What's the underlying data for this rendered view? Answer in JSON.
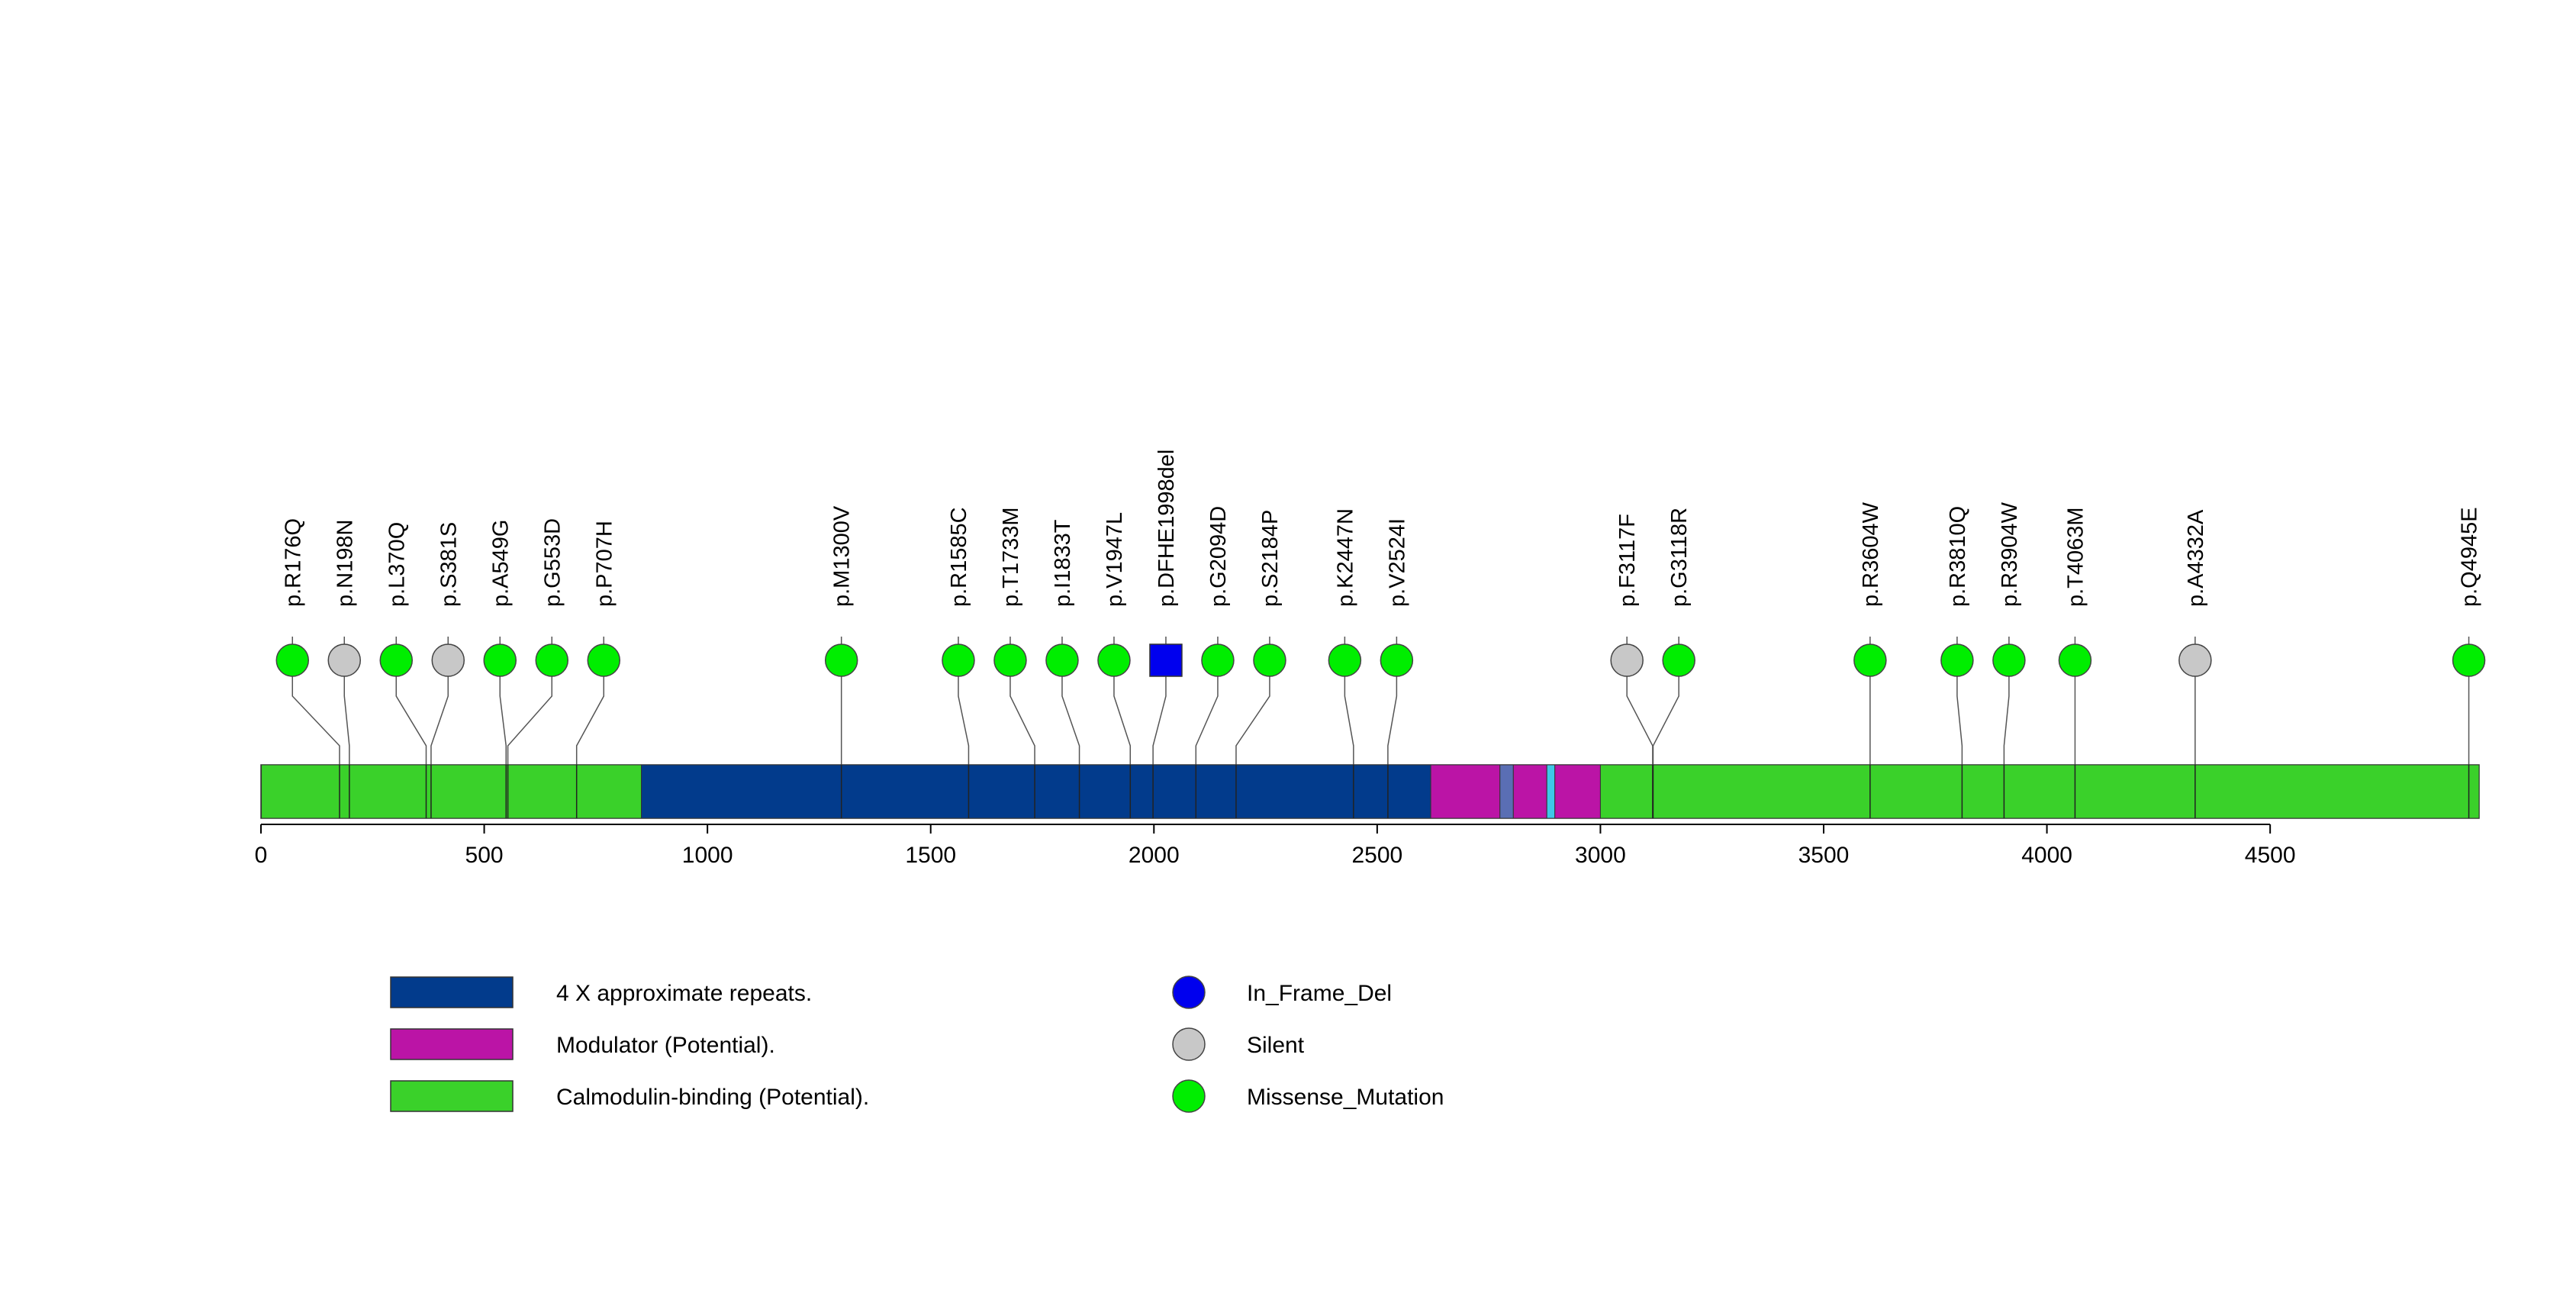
{
  "chart_data": {
    "type": "lollipop",
    "xlim": [
      0,
      4968
    ],
    "x_ticks": [
      0,
      500,
      1000,
      1500,
      2000,
      2500,
      3000,
      3500,
      4000,
      4500
    ],
    "x_tick_labels": [
      "0",
      "500",
      "1000",
      "1500",
      "2000",
      "2500",
      "3000",
      "3500",
      "4000",
      "4500"
    ],
    "domains": [
      {
        "start": 1,
        "end": 852,
        "legend_index": 2
      },
      {
        "start": 852,
        "end": 2620,
        "legend_index": 0
      },
      {
        "start": 2620,
        "end": 2775,
        "legend_index": 1
      },
      {
        "start": 2775,
        "end": 2805,
        "legend_index": null,
        "color": "#5a6eb4"
      },
      {
        "start": 2805,
        "end": 2880,
        "legend_index": 1
      },
      {
        "start": 2880,
        "end": 2898,
        "legend_index": null,
        "color": "#3ec8e8"
      },
      {
        "start": 2898,
        "end": 3000,
        "legend_index": 1
      },
      {
        "start": 3000,
        "end": 4968,
        "legend_index": 2
      }
    ],
    "mutations": [
      {
        "label": "p.R176Q",
        "position": 176,
        "type": "Missense_Mutation"
      },
      {
        "label": "p.N198N",
        "position": 198,
        "type": "Silent"
      },
      {
        "label": "p.L370Q",
        "position": 370,
        "type": "Missense_Mutation"
      },
      {
        "label": "p.S381S",
        "position": 381,
        "type": "Silent"
      },
      {
        "label": "p.A549G",
        "position": 549,
        "type": "Missense_Mutation"
      },
      {
        "label": "p.G553D",
        "position": 553,
        "type": "Missense_Mutation"
      },
      {
        "label": "p.P707H",
        "position": 707,
        "type": "Missense_Mutation"
      },
      {
        "label": "p.M1300V",
        "position": 1300,
        "type": "Missense_Mutation"
      },
      {
        "label": "p.R1585C",
        "position": 1585,
        "type": "Missense_Mutation"
      },
      {
        "label": "p.T1733M",
        "position": 1733,
        "type": "Missense_Mutation"
      },
      {
        "label": "p.I1833T",
        "position": 1833,
        "type": "Missense_Mutation"
      },
      {
        "label": "p.V1947L",
        "position": 1947,
        "type": "Missense_Mutation"
      },
      {
        "label": "p.DFHE1998del",
        "position": 1998,
        "type": "In_Frame_Del"
      },
      {
        "label": "p.G2094D",
        "position": 2094,
        "type": "Missense_Mutation"
      },
      {
        "label": "p.S2184P",
        "position": 2184,
        "type": "Missense_Mutation"
      },
      {
        "label": "p.K2447N",
        "position": 2447,
        "type": "Missense_Mutation"
      },
      {
        "label": "p.V2524I",
        "position": 2524,
        "type": "Missense_Mutation"
      },
      {
        "label": "p.F3117F",
        "position": 3117,
        "type": "Silent"
      },
      {
        "label": "p.G3118R",
        "position": 3118,
        "type": "Missense_Mutation"
      },
      {
        "label": "p.R3604W",
        "position": 3604,
        "type": "Missense_Mutation"
      },
      {
        "label": "p.R3810Q",
        "position": 3810,
        "type": "Missense_Mutation"
      },
      {
        "label": "p.R3904W",
        "position": 3904,
        "type": "Missense_Mutation"
      },
      {
        "label": "p.T4063M",
        "position": 4063,
        "type": "Missense_Mutation"
      },
      {
        "label": "p.A4332A",
        "position": 4332,
        "type": "Silent"
      },
      {
        "label": "p.Q4945E",
        "position": 4945,
        "type": "Missense_Mutation"
      }
    ],
    "domain_legend": [
      {
        "label": "4 X approximate repeats.",
        "color": "#023b8c"
      },
      {
        "label": "Modulator (Potential).",
        "color": "#bb14a6"
      },
      {
        "label": "Calmodulin-binding (Potential).",
        "color": "#3ad12a"
      }
    ],
    "mutation_legend": [
      {
        "label": "In_Frame_Del",
        "color": "#0000ee"
      },
      {
        "label": "Silent",
        "color": "#c8c8c8"
      },
      {
        "label": "Missense_Mutation",
        "color": "#00ee00"
      }
    ],
    "protein_bar_color": "#12d012"
  }
}
